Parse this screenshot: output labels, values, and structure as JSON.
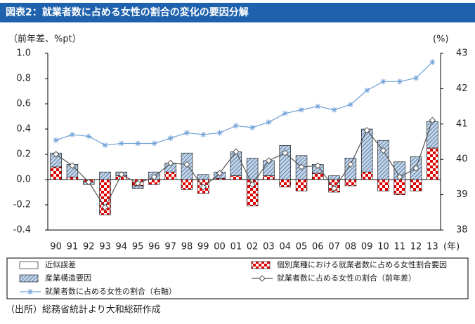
{
  "chart_data": {
    "type": "bar_line",
    "title": "図表2：就業者数に占める女性の割合の変化の要因分解",
    "y_label": "（前年差、%pt）",
    "y2_label": "(%)",
    "x_unit": "(年)",
    "source": "（出所）総務省統計より大和総研作成",
    "categories": [
      "90",
      "91",
      "92",
      "93",
      "94",
      "95",
      "96",
      "97",
      "98",
      "99",
      "00",
      "01",
      "02",
      "03",
      "04",
      "05",
      "06",
      "07",
      "08",
      "09",
      "10",
      "11",
      "12",
      "13"
    ],
    "ylim": [
      -0.4,
      1.0
    ],
    "yticks": [
      {
        "value": 1,
        "label": "1.0"
      },
      0.8,
      0.6,
      0.4,
      0.2,
      {
        "value": 0,
        "label": "0.0"
      },
      -0.2,
      -0.4
    ],
    "y2lim": [
      38,
      43
    ],
    "y2ticks": [
      43,
      42,
      41,
      40,
      39,
      38
    ],
    "series": [
      {
        "name": "近似誤差",
        "kind": "bar",
        "color": "#ffffff",
        "values": [
          0,
          0,
          0,
          0,
          0,
          0,
          0,
          0,
          0,
          0,
          0,
          0,
          0,
          0,
          0,
          0,
          0,
          0,
          0,
          0,
          0,
          0,
          0,
          0
        ]
      },
      {
        "name": "個別業種における就業者数に占める女性割合要因",
        "kind": "bar",
        "color": "#e00000",
        "values": [
          0.1,
          0.02,
          -0.02,
          -0.28,
          0.03,
          -0.05,
          -0.04,
          0.06,
          -0.08,
          -0.11,
          0.01,
          0.03,
          -0.21,
          0.03,
          -0.06,
          -0.09,
          0.05,
          -0.1,
          -0.05,
          0.06,
          -0.09,
          -0.12,
          -0.09,
          0.25
        ]
      },
      {
        "name": "産業構造要因",
        "kind": "bar",
        "color": "#9db9d8",
        "values": [
          0.11,
          0.1,
          -0.02,
          0.06,
          0.03,
          -0.02,
          0.06,
          0.07,
          0.21,
          0.04,
          0.05,
          0.19,
          0.17,
          0.12,
          0.27,
          0.19,
          0.07,
          0.03,
          0.17,
          0.34,
          0.31,
          0.14,
          0.18,
          0.21
        ]
      },
      {
        "name": "就業者数に占める女性の割合（前年差）",
        "kind": "line",
        "color": "#555555",
        "values": [
          0.2,
          0.11,
          -0.02,
          -0.22,
          0.04,
          -0.03,
          0.02,
          0.13,
          0.12,
          -0.06,
          0.05,
          0.22,
          -0.04,
          0.15,
          0.21,
          0.1,
          0.11,
          -0.07,
          0.12,
          0.39,
          0.23,
          0.02,
          0.09,
          0.47
        ]
      },
      {
        "name": "就業者数に占める女性の割合（右軸）",
        "kind": "line",
        "axis": "y2",
        "color": "#6fa0d8",
        "values": [
          40.54,
          40.7,
          40.65,
          40.4,
          40.45,
          40.45,
          40.45,
          40.6,
          40.75,
          40.7,
          40.75,
          40.95,
          40.9,
          41.05,
          41.3,
          41.4,
          41.5,
          41.4,
          41.55,
          41.95,
          42.2,
          42.2,
          42.3,
          42.75
        ]
      }
    ]
  }
}
